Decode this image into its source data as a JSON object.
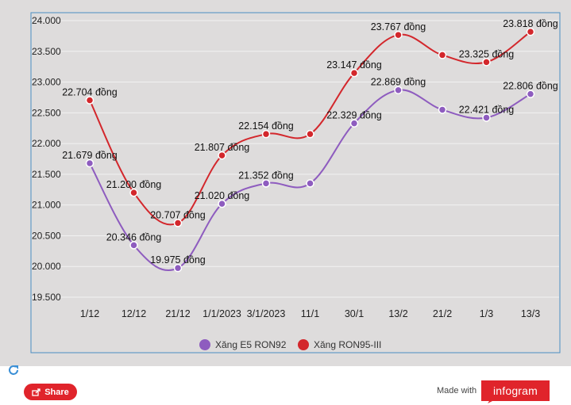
{
  "chart_data": {
    "type": "line",
    "categories": [
      "1/12",
      "12/12",
      "21/12",
      "1/1/2023",
      "3/1/2023",
      "11/1",
      "30/1",
      "13/2",
      "21/2",
      "1/3",
      "13/3"
    ],
    "ylim": [
      19500,
      24000
    ],
    "yticks": [
      "24.000",
      "23.500",
      "23.000",
      "22.500",
      "22.000",
      "21.500",
      "21.000",
      "20.500",
      "20.000",
      "19.500"
    ],
    "grid": true,
    "legend_position": "bottom",
    "series": [
      {
        "name": "Xăng E5 RON92",
        "color": "#8e5cbf",
        "values": [
          21679,
          20346,
          19975,
          21020,
          21352,
          21352,
          22329,
          22869,
          22550,
          22421,
          22806
        ],
        "labels": [
          "21.679 đồng",
          "20.346 đồng",
          "19.975 đồng",
          "21.020 đồng",
          "21.352 đồng",
          "",
          "22.329 đồng",
          "22.869 đồng",
          "",
          "22.421 đồng",
          "22.806 đồng"
        ]
      },
      {
        "name": "Xăng RON95-III",
        "color": "#d3272c",
        "values": [
          22704,
          21200,
          20707,
          21807,
          22154,
          22154,
          23147,
          23767,
          23440,
          23325,
          23818
        ],
        "labels": [
          "22.704 đồng",
          "21.200 đồng",
          "20.707 đồng",
          "21.807 đồng",
          "22.154 đồng",
          "",
          "23.147 đồng",
          "23.767 đồng",
          "",
          "23.325 đồng",
          "23.818 đồng"
        ]
      }
    ]
  },
  "footer": {
    "share_label": "Share",
    "made_with": "Made with",
    "brand": "infogram"
  }
}
